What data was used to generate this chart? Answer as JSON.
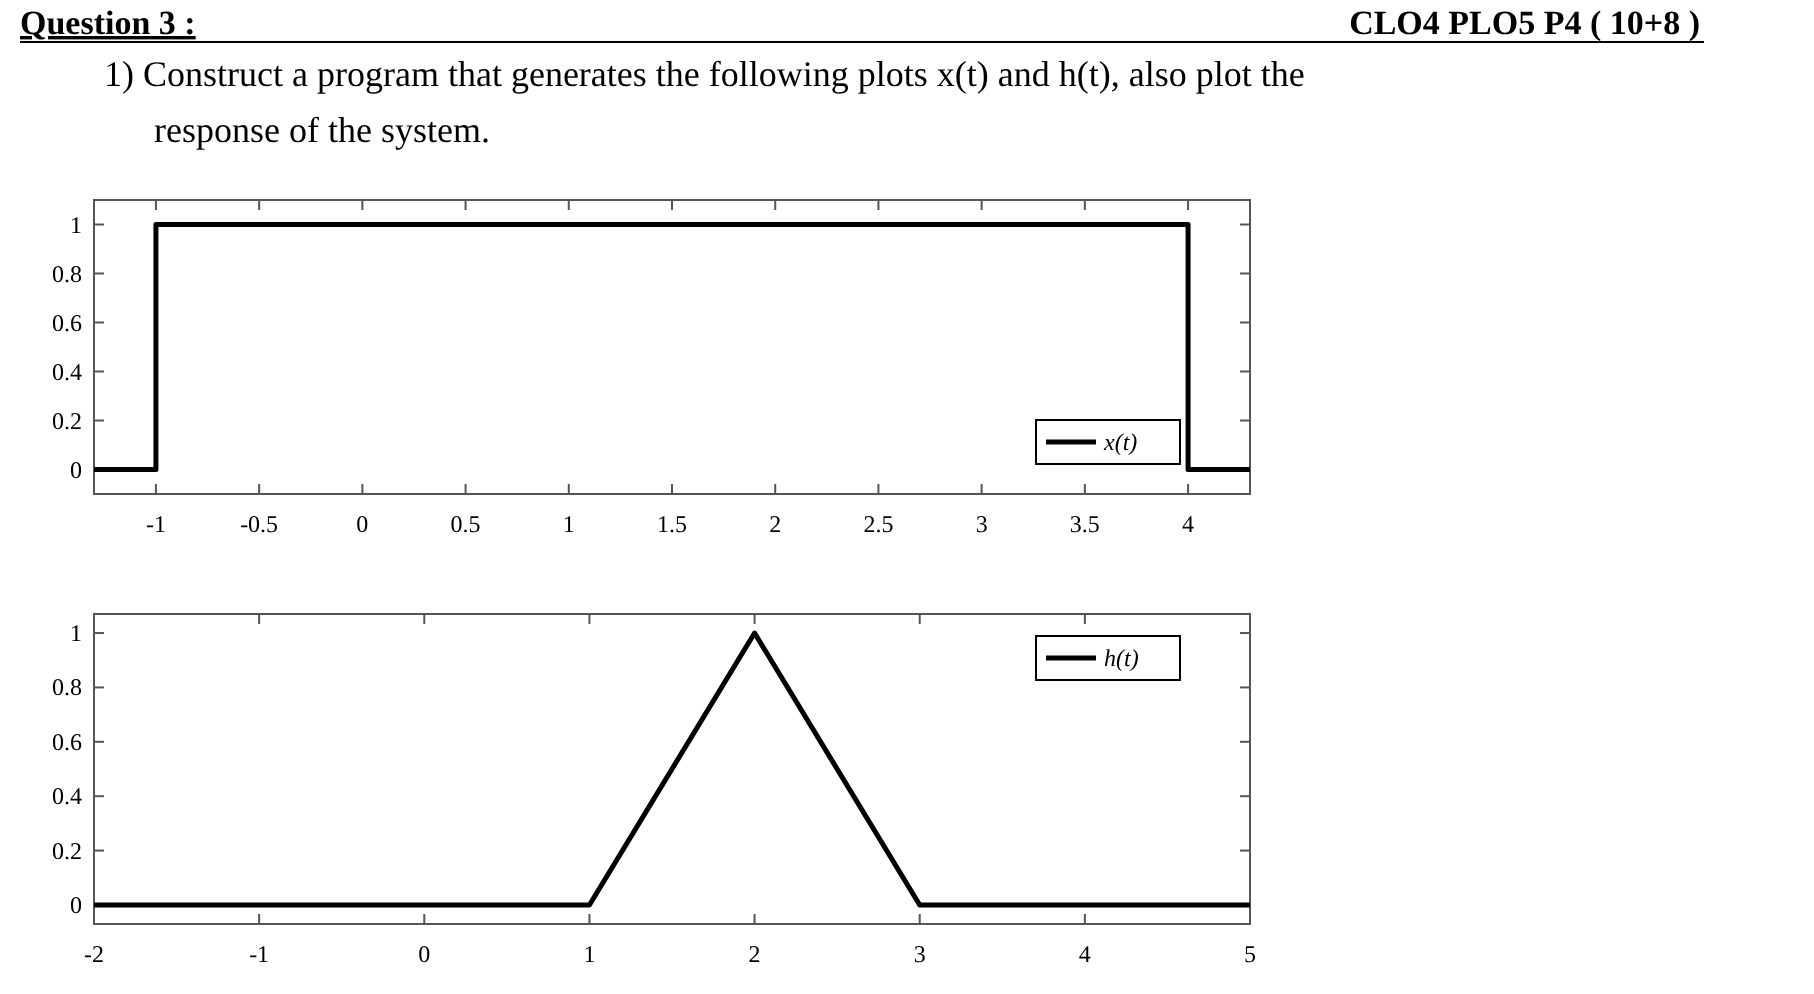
{
  "chart_data": [
    {
      "type": "line",
      "annotations": [
        "Question 3 :",
        "CLO4 PLO5 P4 ( 10+8 )",
        "1) Construct a program that generates the following plots x(t) and h(t), also plot the response of the system."
      ],
      "xlim": [
        -1.3,
        4.3
      ],
      "xticks": [
        -1,
        -0.5,
        0,
        0.5,
        1,
        1.5,
        2,
        2.5,
        3,
        3.5,
        4
      ],
      "ylim": [
        -0.1,
        1.1
      ],
      "yticks": [
        0,
        0.2,
        0.4,
        0.6,
        0.8,
        1
      ],
      "legend": "bottom right",
      "series": [
        {
          "name": "x(t)",
          "color": "#000000",
          "x": [
            -1.3,
            -1,
            -1,
            4,
            4,
            4.3
          ],
          "values": [
            0,
            0,
            1,
            1,
            0,
            0
          ]
        }
      ]
    },
    {
      "type": "line",
      "xlim": [
        -2,
        5
      ],
      "xticks": [
        -2,
        -1,
        0,
        1,
        2,
        3,
        4,
        5
      ],
      "ylim": [
        -0.07,
        1.07
      ],
      "yticks": [
        0,
        0.2,
        0.4,
        0.6,
        0.8,
        1
      ],
      "legend": "top right",
      "series": [
        {
          "name": "h(t)",
          "color": "#000000",
          "x": [
            -2,
            1,
            2,
            3,
            5
          ],
          "values": [
            0,
            0,
            1,
            0,
            0
          ]
        }
      ]
    }
  ]
}
